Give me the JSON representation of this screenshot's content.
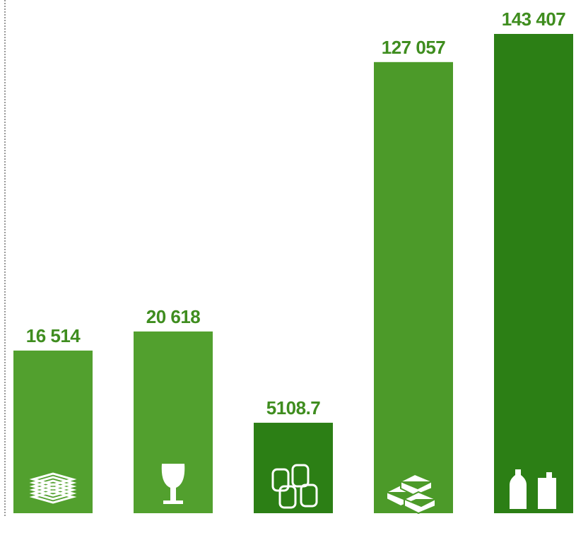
{
  "chart_data": {
    "type": "bar",
    "values": [
      16514,
      20618,
      5108.7,
      127057,
      143407
    ],
    "value_labels": [
      "16 514",
      "20 618",
      "5108.7",
      "127 057",
      "143 407"
    ],
    "colors": [
      "#52a02e",
      "#52a02e",
      "#2c7f15",
      "#4c9a29",
      "#2c7f15"
    ]
  }
}
